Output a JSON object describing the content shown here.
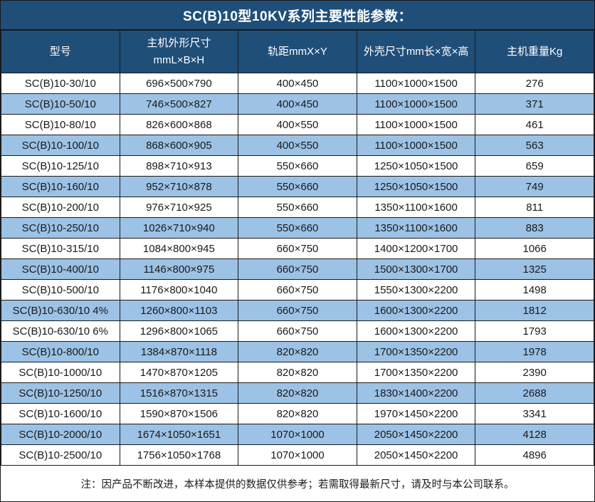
{
  "title": "SC(B)10型10KV系列主要性能参数：",
  "colors": {
    "header_bg": "#1F4E79",
    "row_alt_bg": "#9CC2E5",
    "row_bg": "#FFFFFF",
    "border": "#1A1A1A",
    "header_text": "#FFFFFF",
    "body_text": "#1A1A1A"
  },
  "table": {
    "columns": [
      {
        "label": "型号"
      },
      {
        "label": "主机外形尺寸",
        "label_line2": "mmL×B×H"
      },
      {
        "label": "轨距mmX×Y"
      },
      {
        "label": "外壳尺寸mm长×宽×高"
      },
      {
        "label": "主机重量Kg"
      }
    ],
    "rows": [
      [
        "SC(B)10-30/10",
        "696×500×790",
        "400×450",
        "1100×1000×1500",
        "276"
      ],
      [
        "SC(B)10-50/10",
        "746×500×827",
        "400×450",
        "1100×1000×1500",
        "371"
      ],
      [
        "SC(B)10-80/10",
        "826×600×868",
        "400×550",
        "1100×1000×1500",
        "461"
      ],
      [
        "SC(B)10-100/10",
        "868×600×905",
        "400×550",
        "1100×1000×1500",
        "563"
      ],
      [
        "SC(B)10-125/10",
        "898×710×913",
        "550×660",
        "1250×1050×1500",
        "659"
      ],
      [
        "SC(B)10-160/10",
        "952×710×878",
        "550×660",
        "1250×1050×1500",
        "749"
      ],
      [
        "SC(B)10-200/10",
        "976×710×925",
        "550×660",
        "1350×1100×1600",
        "811"
      ],
      [
        "SC(B)10-250/10",
        "1026×710×940",
        "550×660",
        "1350×1100×1600",
        "883"
      ],
      [
        "SC(B)10-315/10",
        "1084×800×945",
        "660×750",
        "1400×1200×1700",
        "1066"
      ],
      [
        "SC(B)10-400/10",
        "1146×800×975",
        "660×750",
        "1500×1300×1700",
        "1325"
      ],
      [
        "SC(B)10-500/10",
        "1176×800×1040",
        "660×750",
        "1550×1300×2200",
        "1498"
      ],
      [
        "SC(B)10-630/10 4%",
        "1260×800×1103",
        "660×750",
        "1600×1300×2200",
        "1812"
      ],
      [
        "SC(B)10-630/10 6%",
        "1296×800×1065",
        "660×750",
        "1600×1300×2200",
        "1793"
      ],
      [
        "SC(B)10-800/10",
        "1384×870×1118",
        "820×820",
        "1700×1350×2200",
        "1978"
      ],
      [
        "SC(B)10-1000/10",
        "1470×870×1205",
        "820×820",
        "1700×1350×2200",
        "2390"
      ],
      [
        "SC(B)10-1250/10",
        "1516×870×1315",
        "820×820",
        "1830×1400×2200",
        "2688"
      ],
      [
        "SC(B)10-1600/10",
        "1590×870×1506",
        "820×820",
        "1970×1450×2200",
        "3341"
      ],
      [
        "SC(B)10-2000/10",
        "1674×1050×1651",
        "1070×1000",
        "2050×1450×2200",
        "4128"
      ],
      [
        "SC(B)10-2500/10",
        "1756×1050×1768",
        "1070×1000",
        "2050×1450×2200",
        "4896"
      ]
    ]
  },
  "footer": {
    "note": "注：因产品不断改进，本样本提供的数据仅供参考；若需取得最新尺寸，请及时与本公司联系。"
  }
}
